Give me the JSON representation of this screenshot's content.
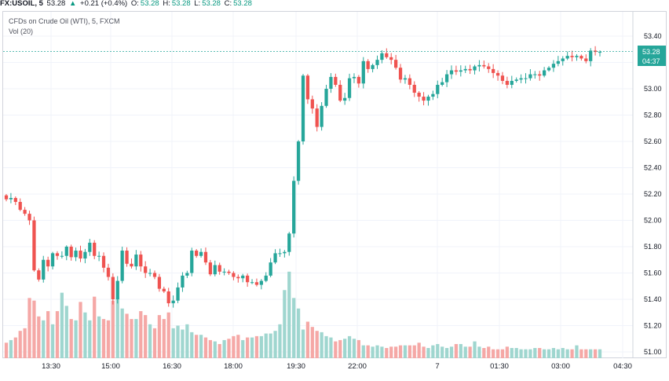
{
  "header": {
    "symbol": "FX:USOIL, 5",
    "last": "53.28",
    "change": "+0.21 (+0.4%)",
    "open_label": "O:",
    "open": "53.28",
    "high_label": "H:",
    "high": "53.28",
    "low_label": "L:",
    "low": "53.28",
    "close_label": "C:",
    "close": "53.28",
    "arrow": "▲"
  },
  "legend": {
    "title": "CFDs on Crude Oil (WTI), 5, FXCM",
    "volume": "Vol (20)"
  },
  "price_tags": {
    "last_price": "53.28",
    "countdown": "04:37"
  },
  "colors": {
    "up": "#26a69a",
    "down": "#ef5350",
    "up_volume": "#9fd6cf",
    "down_volume": "#f5a8a6",
    "grid": "#f0f3fa",
    "price_line": "#26a69a"
  },
  "chart_data": {
    "type": "candlestick",
    "title": "CFDs on Crude Oil (WTI), 5, FXCM",
    "ylim": [
      50.98,
      53.5
    ],
    "y_ticks": [
      "53.40",
      "53.20",
      "53.00",
      "52.80",
      "52.60",
      "52.40",
      "52.20",
      "52.00",
      "51.80",
      "51.60",
      "51.40",
      "51.20",
      "51.00"
    ],
    "x_ticks": [
      "13:30",
      "15:00",
      "16:30",
      "18:00",
      "19:30",
      "22:00",
      "7",
      "01:30",
      "03:00",
      "04:30"
    ],
    "grid": true,
    "close": [
      52.16,
      52.17,
      52.14,
      52.08,
      52.05,
      52.0,
      51.62,
      51.55,
      51.7,
      51.65,
      51.75,
      51.73,
      51.73,
      51.8,
      51.72,
      51.77,
      51.71,
      51.76,
      51.83,
      51.73,
      51.73,
      51.64,
      51.57,
      51.4,
      51.54,
      51.77,
      51.67,
      51.65,
      51.74,
      51.65,
      51.6,
      51.6,
      51.57,
      51.48,
      51.46,
      51.37,
      51.39,
      51.49,
      51.58,
      51.6,
      51.77,
      51.73,
      51.76,
      51.68,
      51.59,
      51.66,
      51.61,
      51.61,
      51.6,
      51.57,
      51.56,
      51.58,
      51.53,
      51.53,
      51.51,
      51.54,
      51.58,
      51.68,
      51.75,
      51.75,
      51.76,
      51.9,
      52.3,
      52.6,
      53.1,
      52.92,
      52.85,
      52.71,
      52.87,
      53.0,
      53.09,
      53.03,
      52.91,
      52.93,
      53.08,
      53.09,
      53.04,
      53.21,
      53.15,
      53.18,
      53.22,
      53.27,
      53.24,
      53.22,
      53.16,
      53.07,
      53.08,
      53.03,
      52.97,
      52.94,
      52.91,
      52.94,
      52.96,
      53.03,
      53.05,
      53.11,
      53.14,
      53.13,
      53.14,
      53.15,
      53.14,
      53.17,
      53.18,
      53.17,
      53.15,
      53.12,
      53.1,
      53.06,
      53.03,
      53.06,
      53.07,
      53.08,
      53.08,
      53.11,
      53.11,
      53.1,
      53.14,
      53.16,
      53.19,
      53.21,
      53.23,
      53.25,
      53.24,
      53.25,
      53.23,
      53.21,
      53.29,
      53.28,
      53.28
    ],
    "volume": [
      51.07,
      51.09,
      51.11,
      51.16,
      51.18,
      51.41,
      51.39,
      51.27,
      51.24,
      51.31,
      51.21,
      51.31,
      51.45,
      51.35,
      51.25,
      51.24,
      51.38,
      51.3,
      51.24,
      51.42,
      51.27,
      51.25,
      51.24,
      51.39,
      51.42,
      51.33,
      51.29,
      51.25,
      51.25,
      51.31,
      51.28,
      51.21,
      51.18,
      51.28,
      51.25,
      51.3,
      51.18,
      51.2,
      51.17,
      51.21,
      51.15,
      51.13,
      51.13,
      51.11,
      51.09,
      51.08,
      51.06,
      51.09,
      51.1,
      51.12,
      51.13,
      51.09,
      51.11,
      51.11,
      51.12,
      51.12,
      51.14,
      51.14,
      51.16,
      51.21,
      51.47,
      51.61,
      51.41,
      51.33,
      51.17,
      51.23,
      51.19,
      51.16,
      51.15,
      51.12,
      51.11,
      51.08,
      51.09,
      51.1,
      51.12,
      51.1,
      51.09,
      51.05,
      51.05,
      51.04,
      51.05,
      51.04,
      51.03,
      51.04,
      51.04,
      51.05,
      51.05,
      51.05,
      51.05,
      51.07,
      51.04,
      51.03,
      51.05,
      51.06,
      51.04,
      51.03,
      51.04,
      51.06,
      51.06,
      51.04,
      51.04,
      51.08,
      51.04,
      51.03,
      51.04,
      51.02,
      51.02,
      51.02,
      51.04,
      51.03,
      51.03,
      51.02,
      51.02,
      51.02,
      51.03,
      51.03,
      51.02,
      51.02,
      51.03,
      51.02,
      51.03,
      51.02,
      51.02,
      51.05,
      51.02,
      51.02,
      51.02,
      51.02,
      51.02
    ]
  }
}
